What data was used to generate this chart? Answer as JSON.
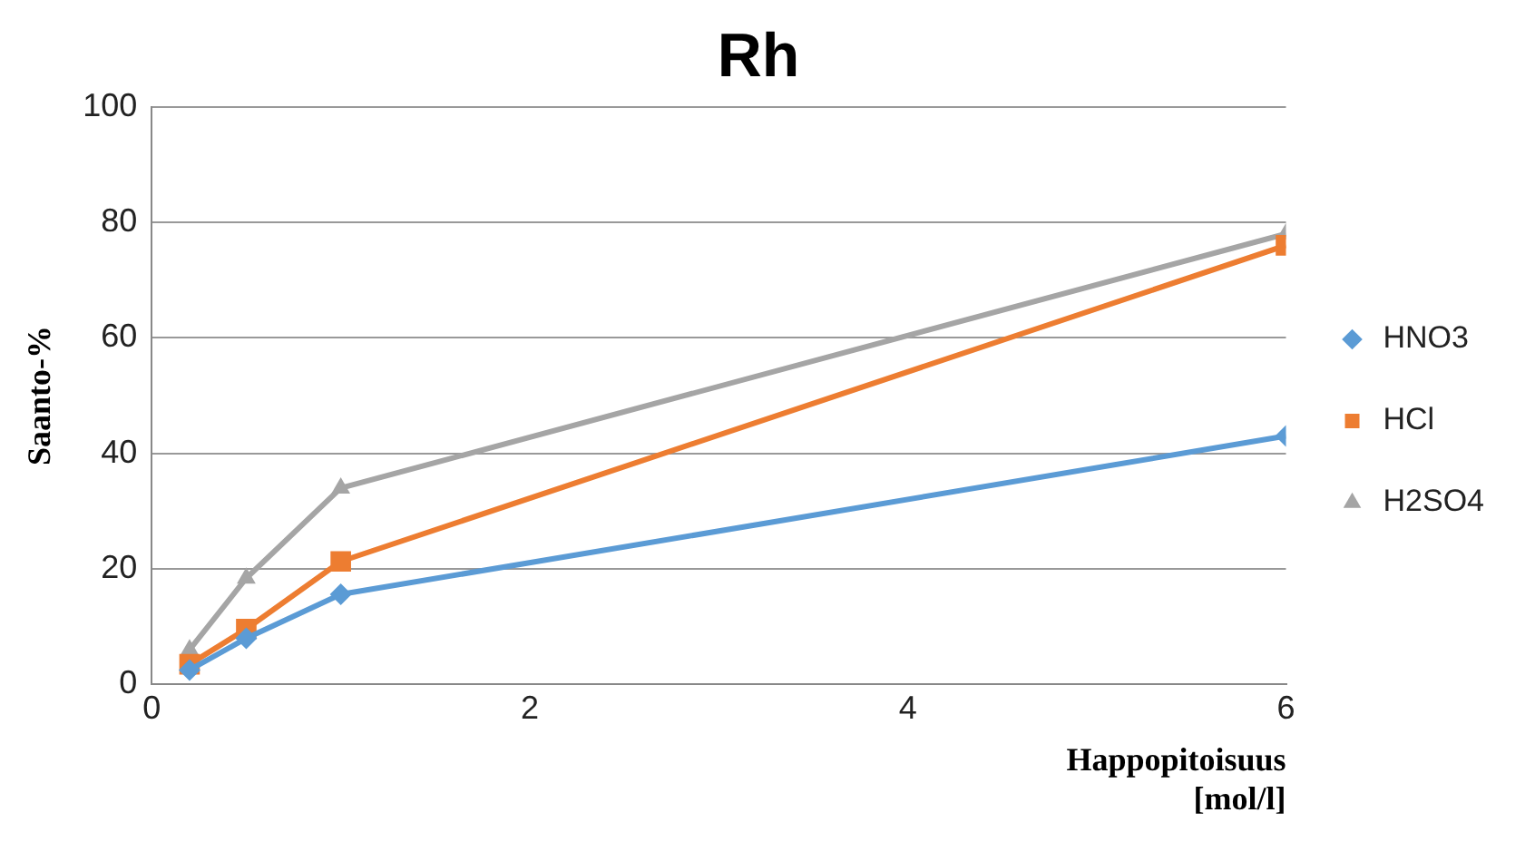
{
  "chart_data": {
    "type": "line",
    "title": "Rh",
    "xlabel": "Happopitoisuus [mol/l]",
    "ylabel": "Saanto-%",
    "x": [
      0.2,
      0.5,
      1,
      6
    ],
    "series": [
      {
        "name": "HNO3",
        "color": "#5b9bd5",
        "marker": "diamond",
        "values": [
          2.5,
          8,
          15.6,
          43
        ]
      },
      {
        "name": "HCl",
        "color": "#ed7d31",
        "marker": "square",
        "values": [
          3.5,
          9.6,
          21.3,
          76
        ]
      },
      {
        "name": "H2SO4",
        "color": "#a5a5a5",
        "marker": "triangle",
        "values": [
          6,
          18.4,
          34,
          78
        ]
      }
    ],
    "xlim": [
      0,
      6
    ],
    "xticks": [
      0,
      2,
      4,
      6
    ],
    "ylim": [
      0,
      100
    ],
    "yticks": [
      0,
      20,
      40,
      60,
      80,
      100
    ],
    "grid": "y",
    "legend": "right"
  }
}
